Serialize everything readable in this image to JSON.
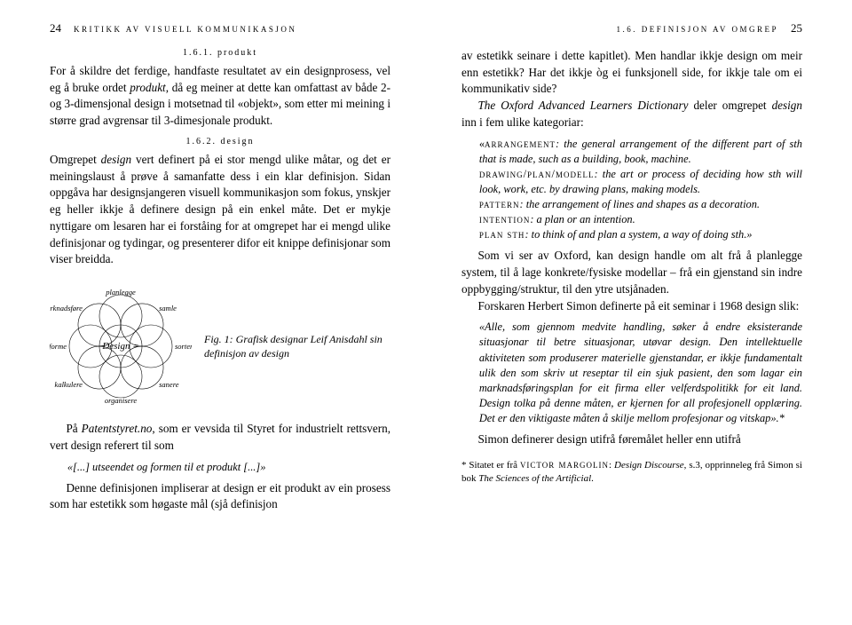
{
  "left": {
    "page_num": "24",
    "running": "kritikk av visuell kommunikasjon",
    "subhead1": "1.6.1. produkt",
    "para1": "For å skildre det ferdige, handfaste resultatet av ein designprosess, vel eg å bruke ordet <span class=\"italic\">produkt</span>, då eg meiner at dette kan omfattast av både 2- og 3-dimensjonal design i motsetnad til «objekt», som etter mi meining i større grad avgrensar til 3-dimesjonale produkt.",
    "subhead2": "1.6.2. design",
    "para2": "Omgrepet <span class=\"italic\">design</span> vert definert på ei stor mengd ulike måtar, og det er meiningslaust å prøve å samanfatte dess i ein klar definisjon. Sidan oppgåva har designsjangeren visuell kommunikasjon som fokus, ynskjer eg heller ikkje å definere design på ein enkel måte. Det er mykje nyttigare om lesaren har ei forståing for at omgrepet har ei mengd ulike definisjonar og tydingar, og presenterer difor eit knippe definisjonar som viser breidda.",
    "diagram": {
      "center": "Design =",
      "petals": [
        "planlegge",
        "samle",
        "sortere",
        "sanere",
        "organisere",
        "kalkulere",
        "forme",
        "marknadsføre"
      ]
    },
    "fig_caption": "Fig. 1: Grafisk designar Leif Anisdahl sin definisjon av design",
    "para3": "På <span class=\"italic\">Patentstyret.no</span>, som er vevsida til Styret for industrielt rettsvern, vert design referert til som",
    "quote1": "«[...] utseendet og formen til et produkt [...]»",
    "para4": "Denne definisjonen impliserar at design er eit produkt av ein prosess som har estetikk som høgaste mål (sjå definisjon"
  },
  "right": {
    "running": "1.6. definisjon av omgrep",
    "page_num": "25",
    "para1": "av estetikk seinare i dette kapitlet). Men handlar ikkje design om meir enn estetikk? Har det ikkje òg ei funksjonell side, for ikkje tale om ei kommunikativ side?",
    "para2": "<span class=\"italic\">The Oxford Advanced Learners Dictionary</span> deler omgrepet <span class=\"italic\">design</span> inn i fem ulike kategoriar:",
    "defs": "«<span class=\"sc-inline\">arrangement</span><span class=\"italic\">: the general arrangement of the different part of sth that is made, such as a building, book, machine.</span><br><span class=\"sc-inline\">drawing/plan/modell</span><span class=\"italic\">: the art or process of deciding how sth will look, work, etc. by drawing plans, making models.</span><br><span class=\"sc-inline\">pattern</span><span class=\"italic\">: the arrangement of lines and shapes as a decoration.</span><br><span class=\"sc-inline\">intention</span><span class=\"italic\">: a plan or an intention.</span><br><span class=\"sc-inline\">plan sth</span><span class=\"italic\">: to think of and plan a system, a way of doing sth.»</span>",
    "para3": "Som vi ser av Oxford, kan design handle om alt frå å planlegge system, til å lage konkrete/fysiske modellar – frå ein gjenstand sin indre oppbygging/struktur, til den ytre utsjånaden.",
    "para4": "Forskaren Herbert Simon definerte på eit seminar i 1968 design slik:",
    "quote2": "<span class=\"italic\">«Alle, som gjennom medvite handling, søker å endre eksisterande situasjonar til betre situasjonar, utøvar design. Den intellektuelle aktiviteten som produserer materielle gjenstandar, er ikkje fundamentalt ulik den som skriv ut reseptar til ein sjuk pasient, den som lagar ein marknadsføringsplan for eit firma eller velferdspolitikk for eit land. Design tolka på denne måten, er kjernen for all profesjonell opplæring. Det er den viktigaste måten å skilje mellom profesjonar og vitskap».*</span>",
    "para5": "Simon definerer design utifrå føremålet heller enn utifrå",
    "footnote": "* Sitatet er frå <span class=\"sc\">victor margolin</span>: <span class=\"italic\">Design Discourse</span>, s.3, opprinneleg frå Simon si bok <span class=\"italic\">The Sciences of the Artificial</span>."
  },
  "colors": {
    "text": "#000000",
    "bg": "#ffffff",
    "diagram_stroke": "#000000"
  }
}
